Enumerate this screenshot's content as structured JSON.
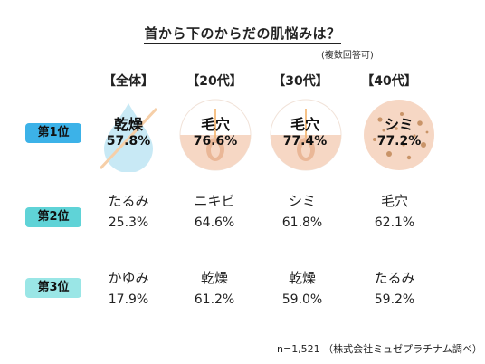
{
  "title": "首から下のからだの肌悩みは？",
  "note": "(複数回答可)",
  "footer": "n=1,521 （株式会社ミュゼプラチナム調べ）",
  "chart_data": {
    "type": "table",
    "columns": [
      "【全体】",
      "【20代】",
      "【30代】",
      "【40代】"
    ],
    "rows": [
      {
        "rank": "第1位",
        "badge_color": "#3cb2e8",
        "items": [
          {
            "label": "乾燥",
            "value": "57.8%"
          },
          {
            "label": "毛穴",
            "value": "76.6%"
          },
          {
            "label": "毛穴",
            "value": "77.4%"
          },
          {
            "label": "シミ",
            "value": "77.2%"
          }
        ]
      },
      {
        "rank": "第2位",
        "badge_color": "#5fd3d7",
        "items": [
          {
            "label": "たるみ",
            "value": "25.3%"
          },
          {
            "label": "ニキビ",
            "value": "64.6%"
          },
          {
            "label": "シミ",
            "value": "61.8%"
          },
          {
            "label": "毛穴",
            "value": "62.1%"
          }
        ]
      },
      {
        "rank": "第3位",
        "badge_color": "#9ae6e6",
        "items": [
          {
            "label": "かゆみ",
            "value": "17.9%"
          },
          {
            "label": "乾燥",
            "value": "61.2%"
          },
          {
            "label": "乾燥",
            "value": "59.0%"
          },
          {
            "label": "たるみ",
            "value": "59.2%"
          }
        ]
      }
    ]
  },
  "icons": [
    "water-drop-icon",
    "pore-icon",
    "pore-icon",
    "spots-icon"
  ],
  "colors": {
    "drop": "#c8e9f5",
    "skin": "#f6d7c4",
    "skin_dark": "#eab797",
    "spot": "#c99468",
    "pore_line": "#f3b26b"
  }
}
